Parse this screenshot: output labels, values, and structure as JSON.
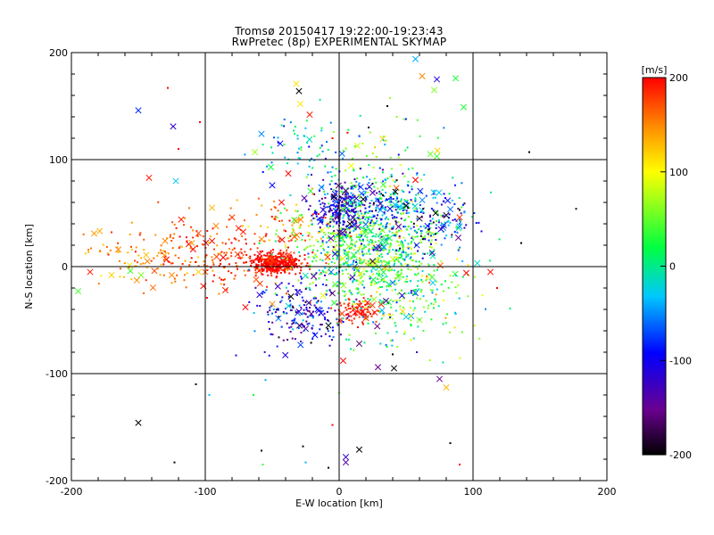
{
  "chart_data": {
    "type": "scatter",
    "title": "Tromsø 20150417 19:22:00-19:23:43",
    "subtitle": "RwPretec (8p) EXPERIMENTAL SKYMAP",
    "xlabel": "E-W location [km]",
    "ylabel": "N-S location [km]",
    "xlim": [
      -200,
      200
    ],
    "ylim": [
      -200,
      200
    ],
    "xticks": [
      "-200",
      "-100",
      "0",
      "100",
      "200"
    ],
    "yticks": [
      "-200",
      "-100",
      "0",
      "100",
      "200"
    ],
    "grid": true,
    "colorbar": {
      "label": "[m/s]",
      "range": [
        -200,
        200
      ],
      "ticks": [
        "200",
        "100",
        "0",
        "-100",
        "-200"
      ],
      "colormap": "rainbow (black-purple-blue-cyan-green-yellow-red)"
    },
    "series": [
      {
        "marker": "x",
        "points": [
          {
            "x": -150,
            "y": 146,
            "v": -80
          },
          {
            "x": -124,
            "y": 131,
            "v": -120
          },
          {
            "x": -122,
            "y": 80,
            "v": -30
          },
          {
            "x": -142,
            "y": 83,
            "v": 190
          },
          {
            "x": -186,
            "y": -5,
            "v": 190
          },
          {
            "x": -195,
            "y": -23,
            "v": 40
          },
          {
            "x": -183,
            "y": 31,
            "v": 140
          },
          {
            "x": -165,
            "y": 16,
            "v": 150
          },
          {
            "x": -170,
            "y": -8,
            "v": 120
          },
          {
            "x": -156,
            "y": -4,
            "v": 40
          },
          {
            "x": -130,
            "y": 24,
            "v": 150
          },
          {
            "x": -118,
            "y": 44,
            "v": 190
          },
          {
            "x": -110,
            "y": 22,
            "v": 140
          },
          {
            "x": -100,
            "y": -5,
            "v": 170
          },
          {
            "x": -125,
            "y": -8,
            "v": 150
          },
          {
            "x": -92,
            "y": 38,
            "v": 150
          },
          {
            "x": -95,
            "y": 55,
            "v": 130
          },
          {
            "x": -80,
            "y": 46,
            "v": 180
          },
          {
            "x": -63,
            "y": 107,
            "v": 70
          },
          {
            "x": -58,
            "y": 124,
            "v": -50
          },
          {
            "x": -44,
            "y": 115,
            "v": -90
          },
          {
            "x": -51,
            "y": 93,
            "v": 20
          },
          {
            "x": -38,
            "y": 87,
            "v": 200
          },
          {
            "x": -50,
            "y": 76,
            "v": -90
          },
          {
            "x": -30,
            "y": 164,
            "v": -200
          },
          {
            "x": -32,
            "y": 171,
            "v": 110
          },
          {
            "x": -29,
            "y": 152,
            "v": 110
          },
          {
            "x": -22,
            "y": 142,
            "v": 190
          },
          {
            "x": -43,
            "y": 60,
            "v": 200
          },
          {
            "x": -26,
            "y": 64,
            "v": -140
          },
          {
            "x": -12,
            "y": 53,
            "v": -120
          },
          {
            "x": -4,
            "y": 65,
            "v": -200
          },
          {
            "x": 5,
            "y": 71,
            "v": -170
          },
          {
            "x": 18,
            "y": 63,
            "v": -200
          },
          {
            "x": 25,
            "y": 69,
            "v": -140
          },
          {
            "x": 38,
            "y": 54,
            "v": -100
          },
          {
            "x": 42,
            "y": 70,
            "v": -200
          },
          {
            "x": -14,
            "y": 42,
            "v": -100
          },
          {
            "x": 8,
            "y": 40,
            "v": -200
          },
          {
            "x": -36,
            "y": -28,
            "v": -200
          },
          {
            "x": -30,
            "y": -42,
            "v": -120
          },
          {
            "x": -16,
            "y": -40,
            "v": -100
          },
          {
            "x": -12,
            "y": -27,
            "v": 90
          },
          {
            "x": -25,
            "y": -58,
            "v": -130
          },
          {
            "x": -18,
            "y": -64,
            "v": -90
          },
          {
            "x": -50,
            "y": -35,
            "v": 150
          },
          {
            "x": -8,
            "y": -55,
            "v": -200
          },
          {
            "x": 12,
            "y": -43,
            "v": 200
          },
          {
            "x": 20,
            "y": -48,
            "v": 190
          },
          {
            "x": 15,
            "y": -72,
            "v": -160
          },
          {
            "x": 3,
            "y": -88,
            "v": 200
          },
          {
            "x": 29,
            "y": -94,
            "v": -150
          },
          {
            "x": 41,
            "y": -95,
            "v": -200
          },
          {
            "x": 60,
            "y": -50,
            "v": 60
          },
          {
            "x": 80,
            "y": -113,
            "v": 130
          },
          {
            "x": 75,
            "y": -105,
            "v": -150
          },
          {
            "x": 15,
            "y": -171,
            "v": -200
          },
          {
            "x": 5,
            "y": -178,
            "v": -120
          },
          {
            "x": 5,
            "y": -183,
            "v": -140
          },
          {
            "x": -150,
            "y": -146,
            "v": -200
          },
          {
            "x": 57,
            "y": 194,
            "v": -40
          },
          {
            "x": 62,
            "y": 178,
            "v": 150
          },
          {
            "x": 73,
            "y": 175,
            "v": -110
          },
          {
            "x": 71,
            "y": 165,
            "v": 60
          },
          {
            "x": 87,
            "y": 176,
            "v": 30
          },
          {
            "x": 93,
            "y": 149,
            "v": 30
          },
          {
            "x": 73,
            "y": 103,
            "v": 40
          },
          {
            "x": 57,
            "y": 81,
            "v": 200
          },
          {
            "x": 50,
            "y": 57,
            "v": -200
          },
          {
            "x": 60,
            "y": 45,
            "v": -180
          },
          {
            "x": 66,
            "y": 38,
            "v": -90
          },
          {
            "x": 72,
            "y": 50,
            "v": -200
          },
          {
            "x": 80,
            "y": 48,
            "v": -190
          },
          {
            "x": 76,
            "y": 35,
            "v": -120
          },
          {
            "x": 89,
            "y": 27,
            "v": -150
          },
          {
            "x": 90,
            "y": 46,
            "v": 180
          },
          {
            "x": 113,
            "y": -5,
            "v": 200
          },
          {
            "x": 95,
            "y": -6,
            "v": 200
          },
          {
            "x": -3,
            "y": 12,
            "v": -110
          },
          {
            "x": -6,
            "y": -5,
            "v": -60
          },
          {
            "x": 10,
            "y": -10,
            "v": -120
          },
          {
            "x": 25,
            "y": 5,
            "v": -170
          },
          {
            "x": 30,
            "y": 18,
            "v": -140
          },
          {
            "x": 40,
            "y": -15,
            "v": -60
          },
          {
            "x": -19,
            "y": -9,
            "v": -150
          },
          {
            "x": -5,
            "y": -25,
            "v": -170
          },
          {
            "x": 47,
            "y": -27,
            "v": -110
          },
          {
            "x": 35,
            "y": -32,
            "v": -140
          },
          {
            "x": 58,
            "y": 20,
            "v": -80
          },
          {
            "x": 70,
            "y": -15,
            "v": -30
          },
          {
            "x": -70,
            "y": -38,
            "v": 200
          },
          {
            "x": -62,
            "y": -12,
            "v": 170
          },
          {
            "x": -85,
            "y": -22,
            "v": 190
          },
          {
            "x": -105,
            "y": -5,
            "v": 120
          },
          {
            "x": -138,
            "y": -4,
            "v": 170
          },
          {
            "x": -148,
            "y": -8,
            "v": 60
          }
        ]
      },
      {
        "marker": "dot",
        "points": [
          {
            "x": -128,
            "y": 167,
            "v": 200
          },
          {
            "x": -120,
            "y": 110,
            "v": 200
          },
          {
            "x": -104,
            "y": 135,
            "v": 200
          },
          {
            "x": -107,
            "y": -110,
            "v": -200
          },
          {
            "x": -97,
            "y": -120,
            "v": -30
          },
          {
            "x": -77,
            "y": -83,
            "v": -110
          },
          {
            "x": -64,
            "y": -120,
            "v": 20
          },
          {
            "x": -58,
            "y": -172,
            "v": -200
          },
          {
            "x": -57,
            "y": -185,
            "v": 40
          },
          {
            "x": -123,
            "y": -183,
            "v": -200
          },
          {
            "x": -27,
            "y": -168,
            "v": -200
          },
          {
            "x": -25,
            "y": -183,
            "v": -40
          },
          {
            "x": -5,
            "y": -148,
            "v": 200
          },
          {
            "x": 0,
            "y": -118,
            "v": 60
          },
          {
            "x": -55,
            "y": -106,
            "v": -40
          },
          {
            "x": 142,
            "y": 107,
            "v": -200
          },
          {
            "x": 136,
            "y": 22,
            "v": -200
          },
          {
            "x": 177,
            "y": 54,
            "v": -180
          },
          {
            "x": 118,
            "y": -20,
            "v": 200
          },
          {
            "x": 90,
            "y": -185,
            "v": 200
          },
          {
            "x": 83,
            "y": -165,
            "v": -200
          },
          {
            "x": 63,
            "y": -60,
            "v": 40
          },
          {
            "x": 58,
            "y": -80,
            "v": -120
          },
          {
            "x": -8,
            "y": -188,
            "v": -200
          },
          {
            "x": 40,
            "y": -82,
            "v": -200
          },
          {
            "x": -5,
            "y": 120,
            "v": 200
          },
          {
            "x": 22,
            "y": 130,
            "v": -200
          },
          {
            "x": 36,
            "y": 150,
            "v": -200
          },
          {
            "x": 43,
            "y": 140,
            "v": 60
          }
        ]
      }
    ],
    "clusters": [
      {
        "x": -48,
        "y": 3,
        "sx": 10,
        "sy": 5,
        "v": 200,
        "v_spread": 20,
        "n": 300
      },
      {
        "x": -95,
        "y": 10,
        "sx": 30,
        "sy": 16,
        "v": 175,
        "v_spread": 40,
        "n": 180
      },
      {
        "x": -150,
        "y": 10,
        "sx": 25,
        "sy": 14,
        "v": 140,
        "v_spread": 40,
        "n": 60
      },
      {
        "x": 20,
        "y": 18,
        "sx": 28,
        "sy": 22,
        "v": 30,
        "v_spread": 90,
        "n": 700
      },
      {
        "x": 0,
        "y": 52,
        "sx": 10,
        "sy": 12,
        "v": -120,
        "v_spread": 60,
        "n": 200
      },
      {
        "x": 25,
        "y": 62,
        "sx": 20,
        "sy": 10,
        "v": -40,
        "v_spread": 90,
        "n": 150
      },
      {
        "x": 60,
        "y": 45,
        "sx": 22,
        "sy": 15,
        "v": -80,
        "v_spread": 120,
        "n": 180
      },
      {
        "x": 15,
        "y": -42,
        "sx": 8,
        "sy": 6,
        "v": 190,
        "v_spread": 20,
        "n": 80
      },
      {
        "x": -25,
        "y": -45,
        "sx": 18,
        "sy": 16,
        "v": -110,
        "v_spread": 90,
        "n": 180
      },
      {
        "x": -30,
        "y": 110,
        "sx": 18,
        "sy": 12,
        "v": -30,
        "v_spread": 70,
        "n": 60
      },
      {
        "x": 30,
        "y": 95,
        "sx": 25,
        "sy": 25,
        "v": 20,
        "v_spread": 130,
        "n": 80
      },
      {
        "x": 45,
        "y": -25,
        "sx": 25,
        "sy": 25,
        "v": 30,
        "v_spread": 110,
        "n": 200
      },
      {
        "x": -40,
        "y": 40,
        "sx": 18,
        "sy": 10,
        "v": 160,
        "v_spread": 60,
        "n": 60
      }
    ]
  }
}
